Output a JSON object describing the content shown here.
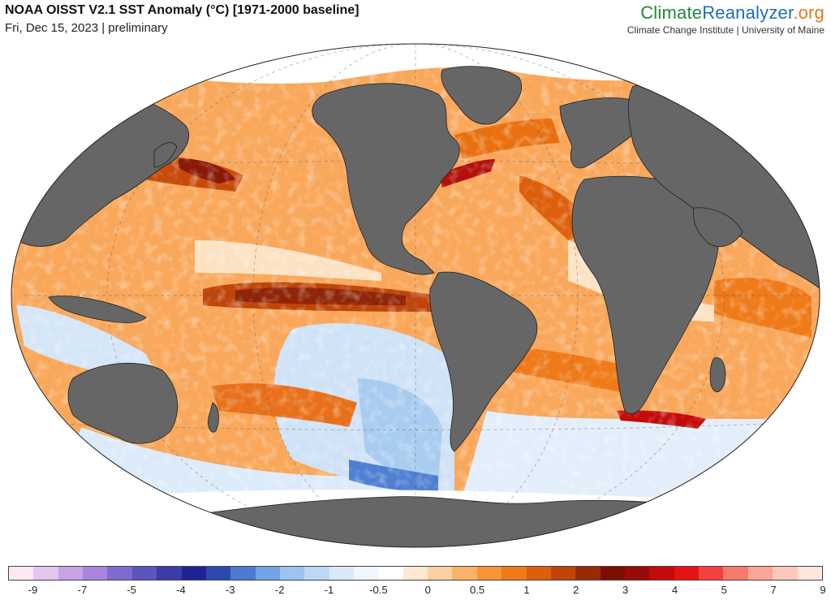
{
  "header": {
    "title": "NOAA OISST V2.1 SST Anomaly (°C) [1971-2000 baseline]",
    "subtitle": "Fri, Dec 15, 2023 | preliminary"
  },
  "brand": {
    "name_part1": "Climate",
    "name_part2": "Reanalyzer",
    "name_part3": ".org",
    "affiliation": "Climate Change Institute | University of Maine"
  },
  "colors": {
    "land": "#666666",
    "coast": "#222222",
    "ocean_neutral": "#ffffff",
    "sea_ice": "#ffffff"
  },
  "legend": {
    "swatches": [
      "#fbe9f3",
      "#e4c6ee",
      "#c7a3e6",
      "#a986dc",
      "#7f6bcd",
      "#5b55bc",
      "#3d3ba8",
      "#1f2396",
      "#2c49b0",
      "#4d7bd0",
      "#73a3e3",
      "#9cc4ef",
      "#bcd8f5",
      "#d9e9fa",
      "#f0f6fd",
      "#ffffff",
      "#fde8d0",
      "#fcd0a0",
      "#fab26a",
      "#f79538",
      "#ef7a18",
      "#dd5f0c",
      "#bf4509",
      "#9a2a06",
      "#7c0f04",
      "#980a0a",
      "#c40a0a",
      "#e51313",
      "#f54040",
      "#f87a6a",
      "#fba596",
      "#fdc8bc",
      "#fee6de"
    ],
    "labels": [
      "-9",
      "-7",
      "-5",
      "-4",
      "-3",
      "-2",
      "-1",
      "-0.5",
      "0",
      "0.5",
      "1",
      "2",
      "3",
      "4",
      "5",
      "7",
      "9"
    ]
  }
}
